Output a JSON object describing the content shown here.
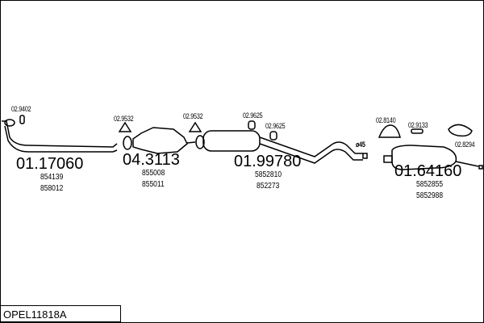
{
  "diagram_code": "OPEL11818A",
  "parts": [
    {
      "number": "01.17060",
      "refs": [
        "854139",
        "858012"
      ]
    },
    {
      "number": "04.3113",
      "refs": [
        "855008",
        "855011"
      ]
    },
    {
      "number": "01.99780",
      "refs": [
        "5852810",
        "852273"
      ]
    },
    {
      "number": "01.64160",
      "refs": [
        "5852855",
        "5852988"
      ]
    }
  ],
  "fittings": [
    "02.9402",
    "02.9532",
    "02.9532",
    "02.9625",
    "02.9625",
    "02.8140",
    "02.9133",
    "02.8294"
  ],
  "diameter_label": "ø45"
}
